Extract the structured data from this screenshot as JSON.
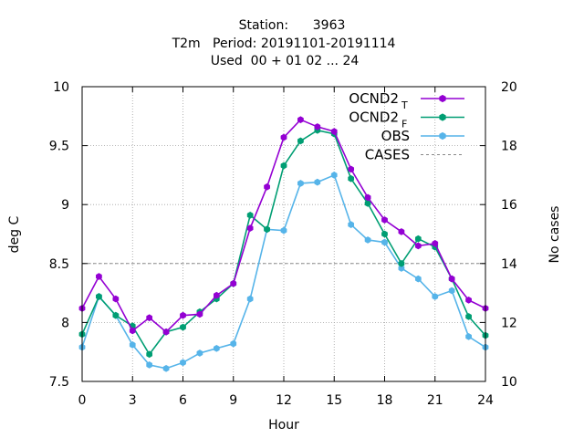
{
  "chart_data": {
    "type": "line",
    "title_lines": [
      "Station:      3963",
      "T2m   Period: 20191101-20191114",
      "Used  00 + 01 02 ... 24"
    ],
    "xlabel": "Hour",
    "ylabel": "deg C",
    "y2label": "No cases",
    "xlim": [
      0,
      24
    ],
    "ylim": [
      7.5,
      10
    ],
    "y2lim": [
      10,
      20
    ],
    "x_ticks": [
      "0",
      "3",
      "6",
      "9",
      "12",
      "15",
      "18",
      "21",
      "24"
    ],
    "y_ticks": [
      "7.5",
      "8",
      "8.5",
      "9",
      "9.5",
      "10"
    ],
    "y2_ticks": [
      "10",
      "12",
      "14",
      "16",
      "18",
      "20"
    ],
    "grid": true,
    "legend_position": "top-right",
    "x": [
      0,
      1,
      2,
      3,
      4,
      5,
      6,
      7,
      8,
      9,
      10,
      11,
      12,
      13,
      14,
      15,
      16,
      17,
      18,
      19,
      20,
      21,
      22,
      23,
      24
    ],
    "series": [
      {
        "name": "OCND2",
        "subscript": "T",
        "color": "#9400d3",
        "values": [
          8.12,
          8.39,
          8.2,
          7.93,
          8.04,
          7.92,
          8.06,
          8.07,
          8.23,
          8.33,
          8.8,
          9.15,
          9.57,
          9.72,
          9.66,
          9.62,
          9.3,
          9.06,
          8.87,
          8.77,
          8.65,
          8.67,
          8.37,
          8.19,
          8.12
        ]
      },
      {
        "name": "OCND2",
        "subscript": "F",
        "color": "#009e73",
        "values": [
          7.9,
          8.22,
          8.06,
          7.97,
          7.73,
          7.92,
          7.96,
          8.09,
          8.2,
          8.33,
          8.91,
          8.79,
          9.33,
          9.54,
          9.63,
          9.6,
          9.22,
          9.01,
          8.75,
          8.5,
          8.71,
          8.64,
          8.37,
          8.05,
          7.89
        ]
      },
      {
        "name": "OBS",
        "color": "#56b4e9",
        "values": [
          7.79,
          8.22,
          8.06,
          7.81,
          7.64,
          7.61,
          7.66,
          7.74,
          7.78,
          7.82,
          8.2,
          8.79,
          8.78,
          9.18,
          9.19,
          9.25,
          8.83,
          8.7,
          8.68,
          8.46,
          8.37,
          8.22,
          8.27,
          7.88,
          7.79
        ]
      },
      {
        "name": "CASES",
        "color": "#888888",
        "axis": "y2",
        "dashed": true,
        "values": [
          14,
          14,
          14,
          14,
          14,
          14,
          14,
          14,
          14,
          14,
          14,
          14,
          14,
          14,
          14,
          14,
          14,
          14,
          14,
          14,
          14,
          14,
          14,
          14,
          14
        ]
      }
    ]
  }
}
